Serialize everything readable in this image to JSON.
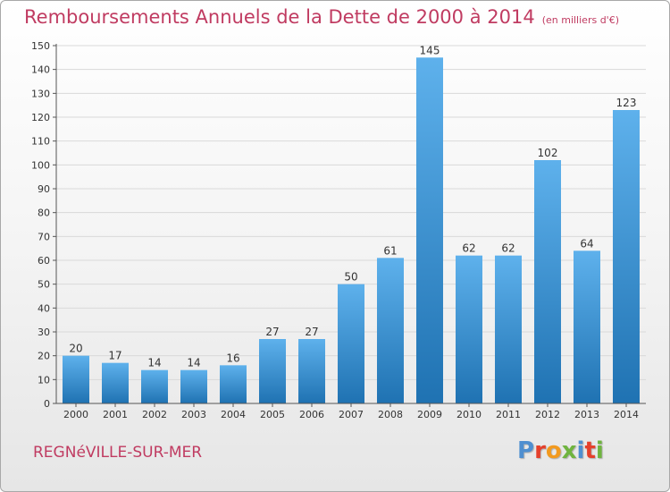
{
  "header": {
    "title": "Remboursements Annuels de la Dette de 2000 à 2014",
    "subtitle": "(en milliers d'€)"
  },
  "footer": {
    "commune": "REGNéVILLE-SUR-MER",
    "logo_text": "Proxiti"
  },
  "colors": {
    "accent": "#c03b61",
    "bar_top": "#5eb1ec",
    "bar_bottom": "#1f72b2",
    "logo_letters": [
      "#4f8fd0",
      "#e5402b",
      "#f29a1f",
      "#6fb43f",
      "#4f8fd0",
      "#e5402b",
      "#6fb43f"
    ]
  },
  "chart_data": {
    "type": "bar",
    "title": "Remboursements Annuels de la Dette de 2000 à 2014",
    "subtitle": "(en milliers d'€)",
    "xlabel": "",
    "ylabel": "",
    "categories": [
      "2000",
      "2001",
      "2002",
      "2003",
      "2004",
      "2005",
      "2006",
      "2007",
      "2008",
      "2009",
      "2010",
      "2011",
      "2012",
      "2013",
      "2014"
    ],
    "values": [
      20,
      17,
      14,
      14,
      16,
      27,
      27,
      50,
      61,
      145,
      62,
      62,
      102,
      64,
      123
    ],
    "ylim": [
      0,
      150
    ],
    "yticks": [
      0,
      10,
      20,
      30,
      40,
      50,
      60,
      70,
      80,
      90,
      100,
      110,
      120,
      130,
      140,
      150
    ],
    "grid": true,
    "data_labels": true
  }
}
